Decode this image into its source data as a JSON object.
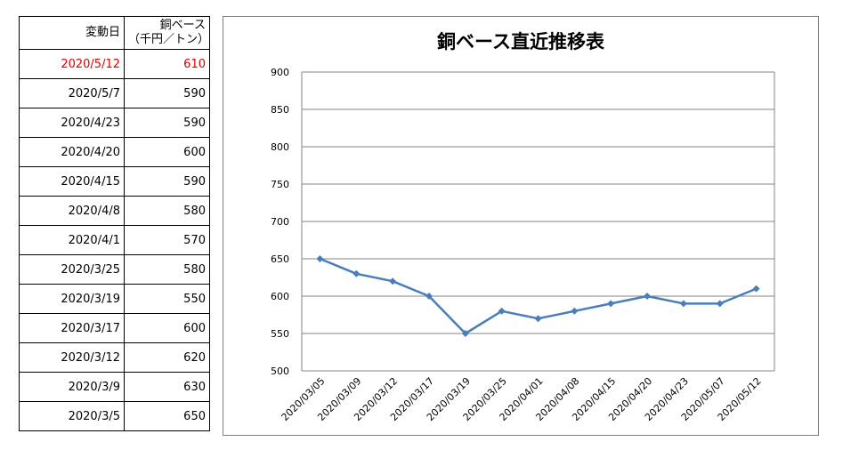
{
  "table": {
    "header": {
      "date": "変動日",
      "value_line1": "銅ベース",
      "value_line2": "（千円／トン）"
    },
    "rows": [
      {
        "date": "2020/5/12",
        "value": "610",
        "highlight": true
      },
      {
        "date": "2020/5/7",
        "value": "590"
      },
      {
        "date": "2020/4/23",
        "value": "590"
      },
      {
        "date": "2020/4/20",
        "value": "600"
      },
      {
        "date": "2020/4/15",
        "value": "590"
      },
      {
        "date": "2020/4/8",
        "value": "580"
      },
      {
        "date": "2020/4/1",
        "value": "570"
      },
      {
        "date": "2020/3/25",
        "value": "580"
      },
      {
        "date": "2020/3/19",
        "value": "550"
      },
      {
        "date": "2020/3/17",
        "value": "600"
      },
      {
        "date": "2020/3/12",
        "value": "620"
      },
      {
        "date": "2020/3/9",
        "value": "630"
      },
      {
        "date": "2020/3/5",
        "value": "650"
      }
    ]
  },
  "colors": {
    "highlight": "#e00000",
    "line": "#4a7ebb",
    "grid": "#868686"
  },
  "chart_data": {
    "type": "line",
    "title": "銅ベース直近推移表",
    "categories": [
      "2020/03/05",
      "2020/03/09",
      "2020/03/12",
      "2020/03/17",
      "2020/03/19",
      "2020/03/25",
      "2020/04/01",
      "2020/04/08",
      "2020/04/15",
      "2020/04/20",
      "2020/04/23",
      "2020/05/07",
      "2020/05/12"
    ],
    "values": [
      650,
      630,
      620,
      600,
      550,
      580,
      570,
      580,
      590,
      600,
      590,
      590,
      610
    ],
    "ylim": [
      500,
      900
    ],
    "yticks": [
      500,
      550,
      600,
      650,
      700,
      750,
      800,
      850,
      900
    ],
    "grid": true,
    "marker": "diamond",
    "legend": "none",
    "xlabel": "",
    "ylabel": ""
  }
}
